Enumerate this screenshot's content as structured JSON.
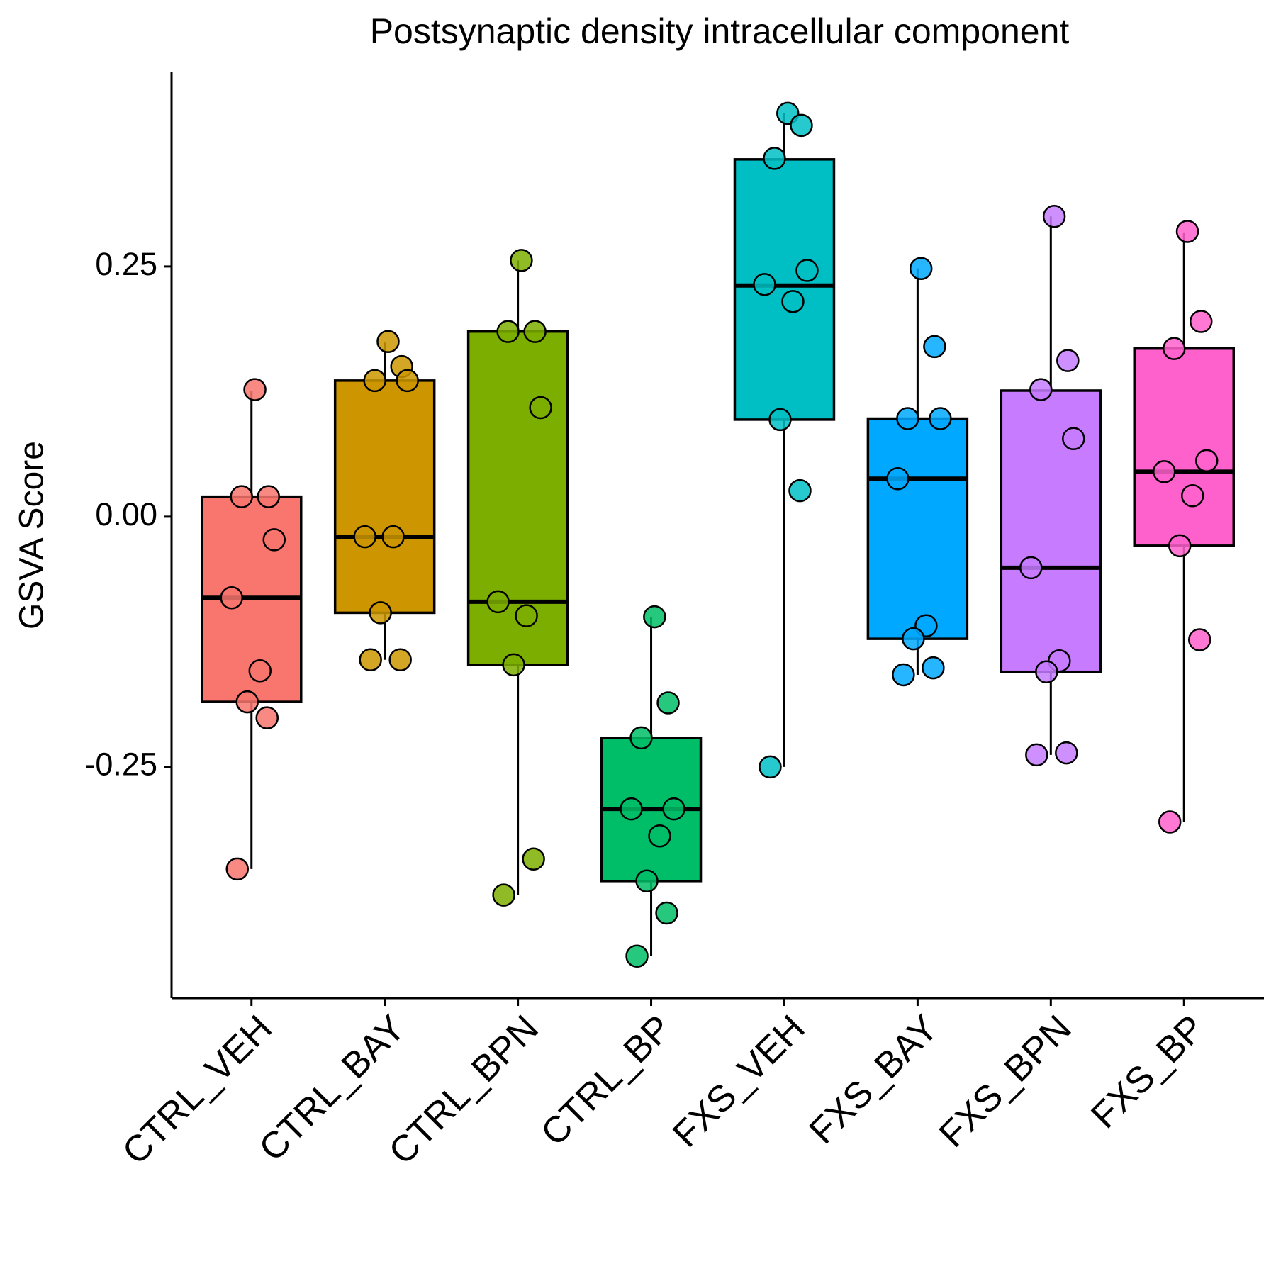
{
  "chart_data": {
    "type": "box",
    "title": "Postsynaptic density intracellular component",
    "y_label": "GSVA Score",
    "categories": [
      "CTRL_VEH",
      "CTRL_BAY",
      "CTRL_BPN",
      "CTRL_BP",
      "FXS_VEH",
      "FXS_BAY",
      "FXS_BPN",
      "FXS_BP"
    ],
    "colors": [
      "#F8766D",
      "#CD9600",
      "#7CAE00",
      "#00BE67",
      "#00BFC4",
      "#00A9FF",
      "#C77CFF",
      "#FF61CC"
    ],
    "boxes": [
      {
        "whisker_low": -0.352,
        "q1": -0.185,
        "median": -0.081,
        "q3": 0.02,
        "whisker_high": 0.126,
        "points": [
          0.127,
          0.02,
          0.02,
          -0.023,
          -0.081,
          -0.154,
          -0.185,
          -0.201,
          -0.352
        ]
      },
      {
        "whisker_low": -0.143,
        "q1": -0.096,
        "median": -0.02,
        "q3": 0.136,
        "whisker_high": 0.174,
        "points": [
          0.175,
          0.15,
          0.136,
          0.136,
          -0.02,
          -0.02,
          -0.096,
          -0.143,
          -0.143
        ]
      },
      {
        "whisker_low": -0.378,
        "q1": -0.148,
        "median": -0.085,
        "q3": 0.185,
        "whisker_high": 0.256,
        "points": [
          0.256,
          0.185,
          0.185,
          0.109,
          -0.085,
          -0.099,
          -0.148,
          -0.342,
          -0.378
        ]
      },
      {
        "whisker_low": -0.439,
        "q1": -0.364,
        "median": -0.292,
        "q3": -0.221,
        "whisker_high": -0.1,
        "points": [
          -0.1,
          -0.186,
          -0.221,
          -0.292,
          -0.292,
          -0.319,
          -0.364,
          -0.396,
          -0.439
        ]
      },
      {
        "whisker_low": -0.25,
        "q1": 0.097,
        "median": 0.231,
        "q3": 0.357,
        "whisker_high": 0.403,
        "points": [
          0.403,
          0.391,
          0.358,
          0.246,
          0.232,
          0.215,
          0.097,
          0.026,
          -0.25
        ]
      },
      {
        "whisker_low": -0.158,
        "q1": -0.122,
        "median": 0.038,
        "q3": 0.098,
        "whisker_high": 0.248,
        "points": [
          0.248,
          0.17,
          0.098,
          0.098,
          0.038,
          -0.109,
          -0.122,
          -0.151,
          -0.158
        ]
      },
      {
        "whisker_low": -0.238,
        "q1": -0.155,
        "median": -0.051,
        "q3": 0.126,
        "whisker_high": 0.3,
        "points": [
          0.3,
          0.156,
          0.127,
          0.078,
          -0.051,
          -0.144,
          -0.155,
          -0.236,
          -0.238
        ]
      },
      {
        "whisker_low": -0.305,
        "q1": -0.029,
        "median": 0.045,
        "q3": 0.168,
        "whisker_high": 0.284,
        "points": [
          0.285,
          0.195,
          0.168,
          0.056,
          0.045,
          0.021,
          -0.029,
          -0.123,
          -0.305
        ]
      }
    ],
    "ylim": [
      -0.481,
      0.444
    ],
    "yticks": [
      0.25,
      {
        "value": 0,
        "label": "0.00"
      },
      -0.25
    ],
    "grid": false
  }
}
